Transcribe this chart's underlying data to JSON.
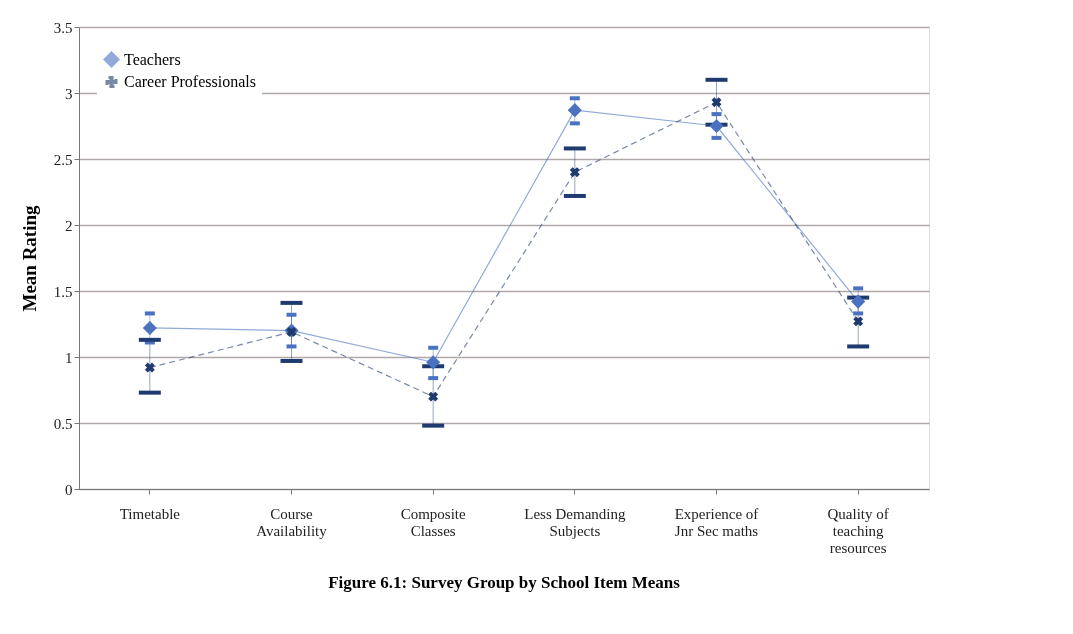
{
  "chart_data": {
    "type": "line",
    "ylabel": "Mean Rating",
    "annotations": [
      "Figure 6.1: Survey Group by School Item Means"
    ],
    "categories": [
      "Timetable",
      "Course Availability",
      "Composite Classes",
      "Less Demanding Subjects",
      "Experience of Jnr Sec maths",
      "Quality of teaching resources"
    ],
    "series": [
      {
        "name": "Teachers",
        "color": "#4a72c0",
        "marker": "diamond",
        "line_style": "solid",
        "values": [
          1.22,
          1.2,
          0.96,
          2.87,
          2.75,
          1.42
        ],
        "errors": [
          [
            1.11,
            1.33
          ],
          [
            1.08,
            1.32
          ],
          [
            0.84,
            1.07
          ],
          [
            2.77,
            2.96
          ],
          [
            2.66,
            2.84
          ],
          [
            1.33,
            1.52
          ]
        ]
      },
      {
        "name": "Career Professionals",
        "color": "#1f3a6e",
        "marker": "cross",
        "line_style": "dashed",
        "values": [
          0.92,
          1.19,
          0.7,
          2.4,
          2.93,
          1.27
        ],
        "errors": [
          [
            0.73,
            1.13
          ],
          [
            0.97,
            1.41
          ],
          [
            0.48,
            0.93
          ],
          [
            2.22,
            2.58
          ],
          [
            2.76,
            3.1
          ],
          [
            1.08,
            1.45
          ]
        ]
      }
    ],
    "ylim": [
      0,
      3.5
    ],
    "yticks": [
      0,
      0.5,
      1,
      1.5,
      2,
      2.5,
      3,
      3.5
    ],
    "grid": "y",
    "legend": "top left"
  }
}
